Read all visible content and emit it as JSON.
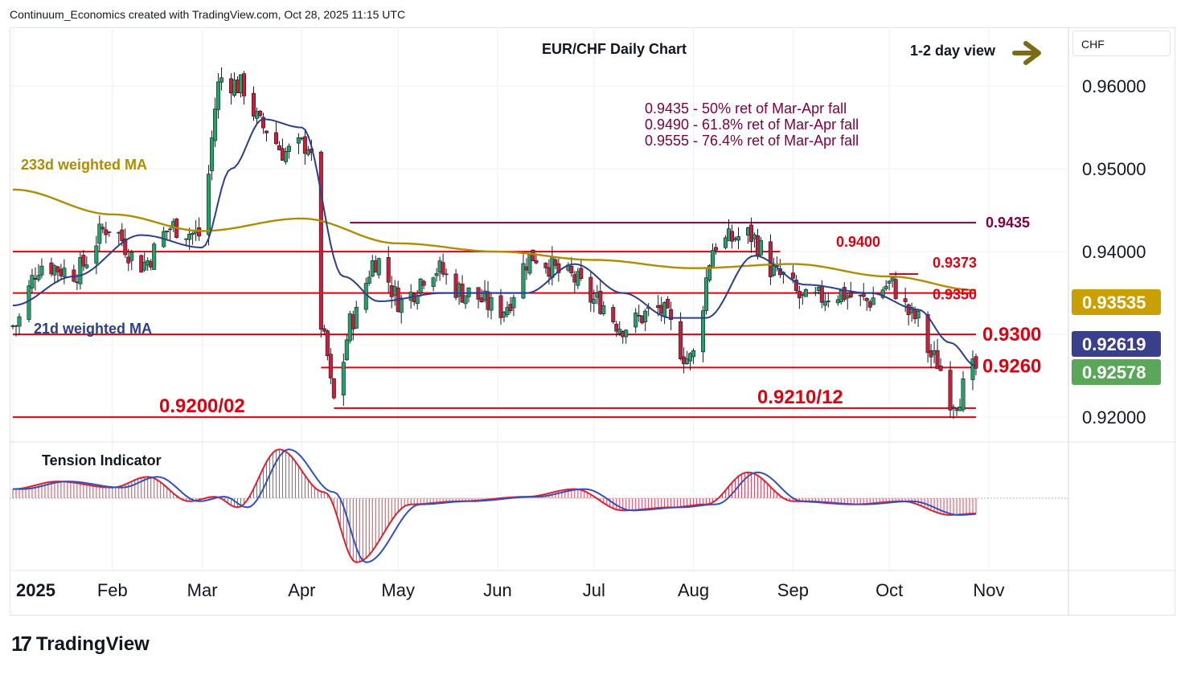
{
  "header": {
    "attribution": "Continuum_Economics created with TradingView.com, Oct 28, 2025 11:15 UTC"
  },
  "brand": {
    "logo_text": "TradingView",
    "logo_mark": "17"
  },
  "currency": "CHF",
  "colors": {
    "support_resistance": "#e0000f",
    "retracement": "#800040",
    "ma21": "#2c3e8c",
    "ma233": "#b08c00",
    "candle_up": "#26a069",
    "candle_down": "#c8203a",
    "arrow": "#7a6b14",
    "price_tag_ma233": "#c9a000",
    "price_tag_ma21": "#3a3f8c",
    "price_tag_last": "#5aa75a"
  },
  "chart_data": {
    "type": "candlestick",
    "title": "EUR/CHF Daily Chart",
    "view_label": "1-2 day view",
    "view_icon": "right-arrow-icon",
    "ylim": [
      0.9172,
      0.9671
    ],
    "y_ticks": [
      "0.96000",
      "0.95000",
      "0.94000",
      "0.92000"
    ],
    "x_tick_labels": [
      "2025",
      "Feb",
      "Mar",
      "Apr",
      "May",
      "Jun",
      "Jul",
      "Aug",
      "Sep",
      "Oct",
      "Nov"
    ],
    "x_date_range": [
      "2025-01-01",
      "2025-10-28"
    ],
    "retracement_notes": [
      "0.9435 - 50% ret of Mar-Apr fall",
      "0.9490 - 61.8% ret of Mar-Apr fall",
      "0.9555 - 76.4% ret of Mar-Apr fall"
    ],
    "levels": [
      {
        "value": 0.9435,
        "label": "0.9435",
        "color": "retracement",
        "from": "2025-04-16",
        "to": "2025-10-28"
      },
      {
        "value": 0.94,
        "label": "0.9400",
        "color": "support_resistance",
        "from": "2025-01-01",
        "to": "2025-08-28"
      },
      {
        "value": 0.9373,
        "label": "0.9373",
        "color": "support_resistance",
        "from": "2025-10-01",
        "to": "2025-10-10"
      },
      {
        "value": 0.935,
        "label": "0.9350",
        "color": "support_resistance",
        "from": "2025-01-01",
        "to": "2025-10-28"
      },
      {
        "value": 0.93,
        "label": "0.9300",
        "color": "support_resistance",
        "from": "2025-01-01",
        "to": "2025-10-28"
      },
      {
        "value": 0.926,
        "label": "0.9260",
        "color": "support_resistance",
        "from": "2025-04-07",
        "to": "2025-10-28"
      },
      {
        "value": 0.9211,
        "label": "0.9210/12",
        "color": "support_resistance",
        "from": "2025-04-11",
        "to": "2025-10-28"
      },
      {
        "value": 0.92,
        "label": "0.9200/02",
        "color": "support_resistance",
        "from": "2025-01-01",
        "to": "2025-10-28"
      }
    ],
    "annotations": {
      "ma233_label": "233d weighted MA",
      "ma21_label": "21d weighted MA",
      "tension_label": "Tension Indicator"
    },
    "price_tags": [
      {
        "value": 0.93535,
        "label": "0.93535",
        "color": "price_tag_ma233"
      },
      {
        "value": 0.92619,
        "label": "0.92619",
        "color": "price_tag_ma21"
      },
      {
        "value": 0.92578,
        "label": "0.92578",
        "color": "price_tag_last"
      }
    ],
    "close_anchors": [
      [
        "2025-01-01",
        0.931
      ],
      [
        "2025-01-10",
        0.9385
      ],
      [
        "2025-01-20",
        0.9375
      ],
      [
        "2025-01-31",
        0.943
      ],
      [
        "2025-02-10",
        0.9385
      ],
      [
        "2025-02-20",
        0.943
      ],
      [
        "2025-02-28",
        0.942
      ],
      [
        "2025-03-07",
        0.961
      ],
      [
        "2025-03-13",
        0.96
      ],
      [
        "2025-03-20",
        0.955
      ],
      [
        "2025-03-27",
        0.952
      ],
      [
        "2025-04-03",
        0.953
      ],
      [
        "2025-04-08",
        0.929
      ],
      [
        "2025-04-11",
        0.922
      ],
      [
        "2025-04-17",
        0.932
      ],
      [
        "2025-04-24",
        0.939
      ],
      [
        "2025-05-02",
        0.934
      ],
      [
        "2025-05-12",
        0.938
      ],
      [
        "2025-05-22",
        0.935
      ],
      [
        "2025-06-02",
        0.933
      ],
      [
        "2025-06-12",
        0.9395
      ],
      [
        "2025-06-23",
        0.937
      ],
      [
        "2025-07-02",
        0.934
      ],
      [
        "2025-07-10",
        0.931
      ],
      [
        "2025-07-21",
        0.933
      ],
      [
        "2025-07-31",
        0.927
      ],
      [
        "2025-08-08",
        0.941
      ],
      [
        "2025-08-18",
        0.942
      ],
      [
        "2025-08-28",
        0.937
      ],
      [
        "2025-09-05",
        0.934
      ],
      [
        "2025-09-15",
        0.935
      ],
      [
        "2025-09-24",
        0.934
      ],
      [
        "2025-10-01",
        0.936
      ],
      [
        "2025-10-09",
        0.932
      ],
      [
        "2025-10-15",
        0.927
      ],
      [
        "2025-10-21",
        0.922
      ],
      [
        "2025-10-28",
        0.9258
      ]
    ],
    "ma21_anchors": [
      [
        "2025-01-01",
        0.9335
      ],
      [
        "2025-01-20",
        0.937
      ],
      [
        "2025-02-10",
        0.942
      ],
      [
        "2025-03-01",
        0.9405
      ],
      [
        "2025-03-10",
        0.95
      ],
      [
        "2025-03-20",
        0.956
      ],
      [
        "2025-04-01",
        0.955
      ],
      [
        "2025-04-14",
        0.937
      ],
      [
        "2025-04-25",
        0.934
      ],
      [
        "2025-05-15",
        0.935
      ],
      [
        "2025-06-10",
        0.935
      ],
      [
        "2025-06-25",
        0.9385
      ],
      [
        "2025-07-10",
        0.935
      ],
      [
        "2025-07-25",
        0.932
      ],
      [
        "2025-08-05",
        0.932
      ],
      [
        "2025-08-20",
        0.9395
      ],
      [
        "2025-09-05",
        0.936
      ],
      [
        "2025-09-25",
        0.935
      ],
      [
        "2025-10-10",
        0.933
      ],
      [
        "2025-10-20",
        0.929
      ],
      [
        "2025-10-28",
        0.92619
      ]
    ],
    "ma233_anchors": [
      [
        "2025-01-01",
        0.9475
      ],
      [
        "2025-02-01",
        0.9445
      ],
      [
        "2025-03-01",
        0.9425
      ],
      [
        "2025-04-01",
        0.944
      ],
      [
        "2025-05-01",
        0.941
      ],
      [
        "2025-06-01",
        0.94
      ],
      [
        "2025-07-01",
        0.939
      ],
      [
        "2025-08-01",
        0.938
      ],
      [
        "2025-09-01",
        0.9385
      ],
      [
        "2025-10-01",
        0.937
      ],
      [
        "2025-10-28",
        0.93535
      ]
    ],
    "tension_anchors": [
      [
        "2025-01-01",
        0.3
      ],
      [
        "2025-01-15",
        0.55
      ],
      [
        "2025-02-01",
        0.35
      ],
      [
        "2025-02-12",
        0.7
      ],
      [
        "2025-02-25",
        -0.1
      ],
      [
        "2025-03-05",
        0.05
      ],
      [
        "2025-03-12",
        -0.3
      ],
      [
        "2025-03-25",
        1.6
      ],
      [
        "2025-04-08",
        0.2
      ],
      [
        "2025-04-18",
        -2.1
      ],
      [
        "2025-05-05",
        -0.2
      ],
      [
        "2025-05-20",
        -0.1
      ],
      [
        "2025-06-10",
        0.05
      ],
      [
        "2025-06-25",
        0.3
      ],
      [
        "2025-07-10",
        -0.4
      ],
      [
        "2025-07-25",
        -0.3
      ],
      [
        "2025-08-05",
        -0.2
      ],
      [
        "2025-08-18",
        0.85
      ],
      [
        "2025-09-01",
        -0.1
      ],
      [
        "2025-09-20",
        -0.2
      ],
      [
        "2025-10-05",
        -0.1
      ],
      [
        "2025-10-20",
        -0.55
      ],
      [
        "2025-10-28",
        -0.5
      ]
    ]
  }
}
